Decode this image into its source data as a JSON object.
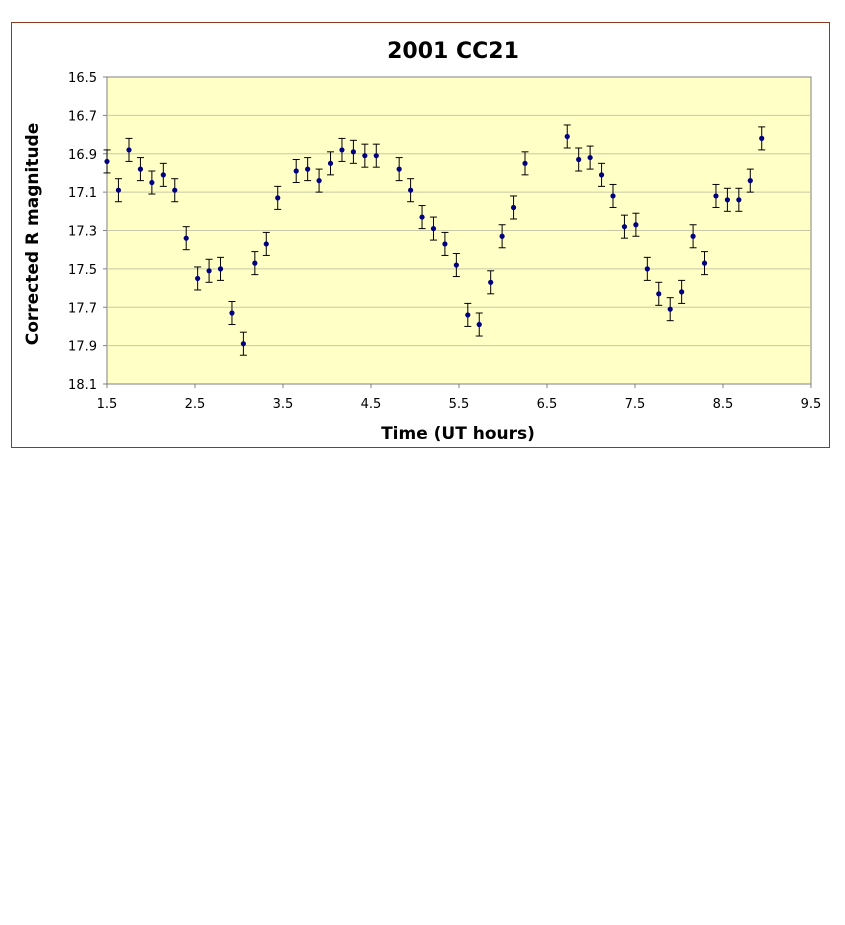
{
  "chart_data": {
    "type": "scatter",
    "title": "2001 CC21",
    "xlabel": "Time (UT hours)",
    "ylabel": "Corrected R magnitude",
    "xlim": [
      1.5,
      9.5
    ],
    "ylim": [
      16.5,
      18.1
    ],
    "y_inverted": true,
    "xticks": [
      "1.5",
      "2.5",
      "3.5",
      "4.5",
      "5.5",
      "6.5",
      "7.5",
      "8.5",
      "9.5"
    ],
    "yticks": [
      "16.5",
      "16.7",
      "16.9",
      "17.1",
      "17.3",
      "17.5",
      "17.7",
      "17.9",
      "18.1"
    ],
    "grid": "horizontal",
    "plot_background": "#ffffc6",
    "marker_color": "#000080",
    "error_bar": 0.06,
    "series": [
      {
        "x": [
          1.5,
          1.63,
          1.75,
          1.88,
          2.01,
          2.14,
          2.27,
          2.4,
          2.53,
          2.66,
          2.79,
          2.92,
          3.05,
          3.18,
          3.31,
          3.44,
          3.65,
          3.78,
          3.91,
          4.04,
          4.17,
          4.3,
          4.43,
          4.56,
          4.82,
          4.95,
          5.08,
          5.21,
          5.34,
          5.47,
          5.6,
          5.73,
          5.86,
          5.99,
          6.12,
          6.25,
          6.73,
          6.86,
          6.99,
          7.12,
          7.25,
          7.38,
          7.51,
          7.64,
          7.77,
          7.9,
          8.03,
          8.16,
          8.29,
          8.42,
          8.55,
          8.68,
          8.81,
          8.94
        ],
        "y": [
          16.94,
          17.09,
          16.88,
          16.98,
          17.05,
          17.01,
          17.09,
          17.34,
          17.55,
          17.51,
          17.5,
          17.73,
          17.89,
          17.47,
          17.37,
          17.13,
          16.99,
          16.98,
          17.04,
          16.95,
          16.88,
          16.89,
          16.91,
          16.91,
          16.98,
          17.09,
          17.23,
          17.29,
          17.37,
          17.48,
          17.74,
          17.79,
          17.57,
          17.33,
          17.18,
          16.95,
          16.81,
          16.93,
          16.92,
          17.01,
          17.12,
          17.28,
          17.27,
          17.5,
          17.63,
          17.71,
          17.62,
          17.33,
          17.47,
          17.12,
          17.14,
          17.14,
          17.04,
          16.82
        ]
      }
    ]
  }
}
